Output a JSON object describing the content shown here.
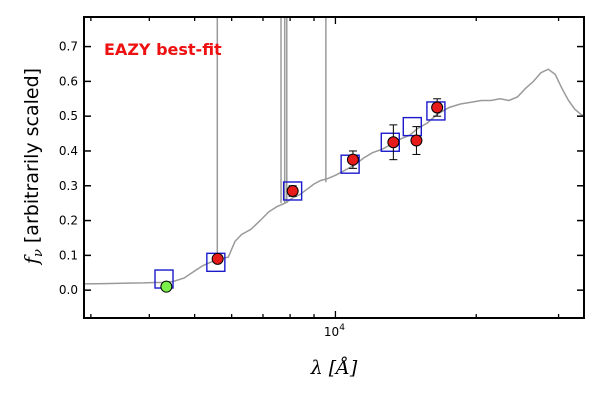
{
  "chart_data": {
    "type": "scatter",
    "title": "",
    "xlabel": "λ [Å]",
    "ylabel": "fν [arbitrarily scaled]",
    "ylabel_parts": {
      "symbol": "f",
      "sub": "ν",
      "text": " [arbitrarily scaled]"
    },
    "xlabel_parts": {
      "symbol": "λ",
      "unit": "[Å]"
    },
    "xscale": "log",
    "xlim": [
      2900,
      34000
    ],
    "ylim": [
      -0.08,
      0.785
    ],
    "x_major_tick": {
      "value": 10000,
      "base": "10",
      "exp": "4"
    },
    "y_ticks": [
      "0.0",
      "0.1",
      "0.2",
      "0.3",
      "0.4",
      "0.5",
      "0.6",
      "0.7"
    ],
    "annotation": {
      "text": "EAZY best-fit",
      "color": "#ee1111"
    },
    "colors": {
      "template": "#9a9a9a",
      "observed": "#e81b1b",
      "upper": "#7bf04a",
      "model_box": "#1a1acc",
      "errorbar": "#000000"
    },
    "series": [
      {
        "kind": "line",
        "role": "template",
        "points": [
          [
            2900,
            0.018
          ],
          [
            3200,
            0.019
          ],
          [
            3500,
            0.02
          ],
          [
            3900,
            0.021
          ],
          [
            4100,
            0.022
          ],
          [
            4300,
            0.022
          ],
          [
            4500,
            0.025
          ],
          [
            4750,
            0.035
          ],
          [
            5000,
            0.055
          ],
          [
            5200,
            0.07
          ],
          [
            5400,
            0.08
          ],
          [
            5700,
            0.09
          ],
          [
            5900,
            0.095
          ],
          [
            6100,
            0.14
          ],
          [
            6300,
            0.16
          ],
          [
            6600,
            0.175
          ],
          [
            6900,
            0.2
          ],
          [
            7200,
            0.225
          ],
          [
            7500,
            0.24
          ],
          [
            7800,
            0.25
          ],
          [
            8100,
            0.265
          ],
          [
            8400,
            0.275
          ],
          [
            8700,
            0.29
          ],
          [
            9000,
            0.305
          ],
          [
            9300,
            0.315
          ],
          [
            9600,
            0.32
          ],
          [
            10000,
            0.33
          ],
          [
            10500,
            0.345
          ],
          [
            11000,
            0.36
          ],
          [
            11500,
            0.38
          ],
          [
            12000,
            0.395
          ],
          [
            12600,
            0.405
          ],
          [
            13200,
            0.42
          ],
          [
            13800,
            0.435
          ],
          [
            14400,
            0.445
          ],
          [
            15000,
            0.465
          ],
          [
            15700,
            0.48
          ],
          [
            16500,
            0.505
          ],
          [
            17500,
            0.525
          ],
          [
            18500,
            0.535
          ],
          [
            19500,
            0.54
          ],
          [
            20500,
            0.545
          ],
          [
            21500,
            0.545
          ],
          [
            22500,
            0.55
          ],
          [
            23500,
            0.545
          ],
          [
            24500,
            0.555
          ],
          [
            25500,
            0.58
          ],
          [
            26500,
            0.6
          ],
          [
            27500,
            0.625
          ],
          [
            28500,
            0.635
          ],
          [
            29500,
            0.62
          ],
          [
            30500,
            0.58
          ],
          [
            31500,
            0.545
          ],
          [
            32500,
            0.52
          ],
          [
            33500,
            0.505
          ],
          [
            34000,
            0.5
          ]
        ]
      },
      {
        "kind": "vlines",
        "role": "emission-lines",
        "lines": [
          [
            5590,
            0.08,
            0.785
          ],
          [
            7650,
            0.25,
            0.785
          ],
          [
            7790,
            0.25,
            0.785
          ],
          [
            7870,
            0.25,
            0.785
          ],
          [
            9540,
            0.31,
            0.785
          ]
        ]
      },
      {
        "kind": "points",
        "role": "observed",
        "points": [
          [
            4350,
            0.01,
            0.01
          ],
          [
            5600,
            0.09,
            0.01
          ],
          [
            8100,
            0.285,
            0.015
          ],
          [
            10900,
            0.375,
            0.025
          ],
          [
            13300,
            0.425,
            0.05
          ],
          [
            14900,
            0.43,
            0.04
          ],
          [
            16500,
            0.525,
            0.025
          ]
        ]
      },
      {
        "kind": "points",
        "role": "upper-limit",
        "points": [
          [
            4350,
            0.01,
            0.015
          ]
        ]
      },
      {
        "kind": "markers",
        "role": "model",
        "points": [
          [
            4300,
            0.032
          ],
          [
            5550,
            0.08
          ],
          [
            8100,
            0.285
          ],
          [
            10750,
            0.362
          ],
          [
            13100,
            0.425
          ],
          [
            14600,
            0.47
          ],
          [
            16400,
            0.515
          ]
        ]
      }
    ]
  }
}
